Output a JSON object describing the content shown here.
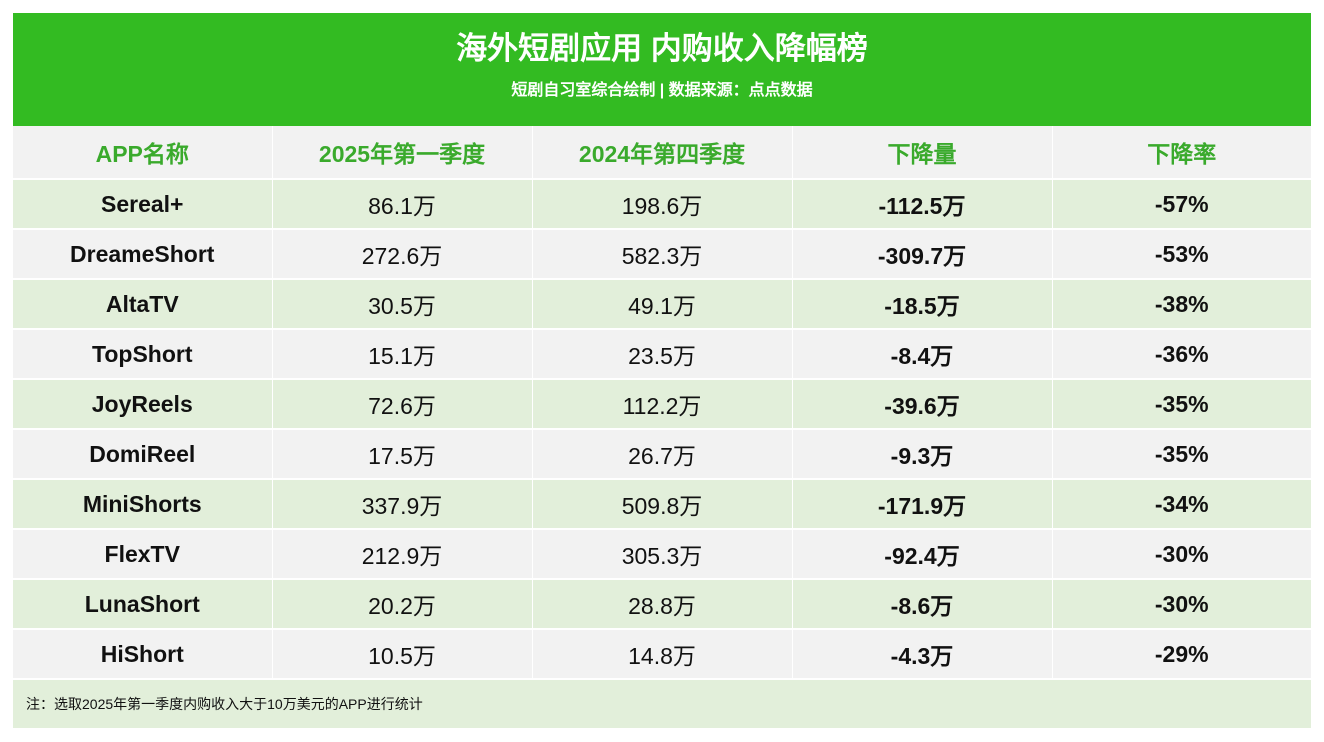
{
  "header": {
    "title": "海外短剧应用 内购收入降幅榜",
    "subtitle": "短剧自习室综合绘制 | 数据来源：点点数据"
  },
  "table": {
    "columns": [
      "APP名称",
      "2025年第一季度",
      "2024年第四季度",
      "下降量",
      "下降率"
    ],
    "rows": [
      {
        "name": "Sereal+",
        "q1_2025": "86.1万",
        "q4_2024": "198.6万",
        "drop": "-112.5万",
        "rate": "-57%"
      },
      {
        "name": "DreameShort",
        "q1_2025": "272.6万",
        "q4_2024": "582.3万",
        "drop": "-309.7万",
        "rate": "-53%"
      },
      {
        "name": "AltaTV",
        "q1_2025": "30.5万",
        "q4_2024": "49.1万",
        "drop": "-18.5万",
        "rate": "-38%"
      },
      {
        "name": "TopShort",
        "q1_2025": "15.1万",
        "q4_2024": "23.5万",
        "drop": "-8.4万",
        "rate": "-36%"
      },
      {
        "name": "JoyReels",
        "q1_2025": "72.6万",
        "q4_2024": "112.2万",
        "drop": "-39.6万",
        "rate": "-35%"
      },
      {
        "name": "DomiReel",
        "q1_2025": "17.5万",
        "q4_2024": "26.7万",
        "drop": "-9.3万",
        "rate": "-35%"
      },
      {
        "name": "MiniShorts",
        "q1_2025": "337.9万",
        "q4_2024": "509.8万",
        "drop": "-171.9万",
        "rate": "-34%"
      },
      {
        "name": "FlexTV",
        "q1_2025": "212.9万",
        "q4_2024": "305.3万",
        "drop": "-92.4万",
        "rate": "-30%"
      },
      {
        "name": "LunaShort",
        "q1_2025": "20.2万",
        "q4_2024": "28.8万",
        "drop": "-8.6万",
        "rate": "-30%"
      },
      {
        "name": "HiShort",
        "q1_2025": "10.5万",
        "q4_2024": "14.8万",
        "drop": "-4.3万",
        "rate": "-29%"
      }
    ]
  },
  "footer": {
    "note": "注：选取2025年第一季度内购收入大于10万美元的APP进行统计"
  },
  "colors": {
    "banner": "#33bb22",
    "header_text": "#3aaa2c",
    "row_green": "#e2efda",
    "row_gray": "#f2f2f2"
  }
}
